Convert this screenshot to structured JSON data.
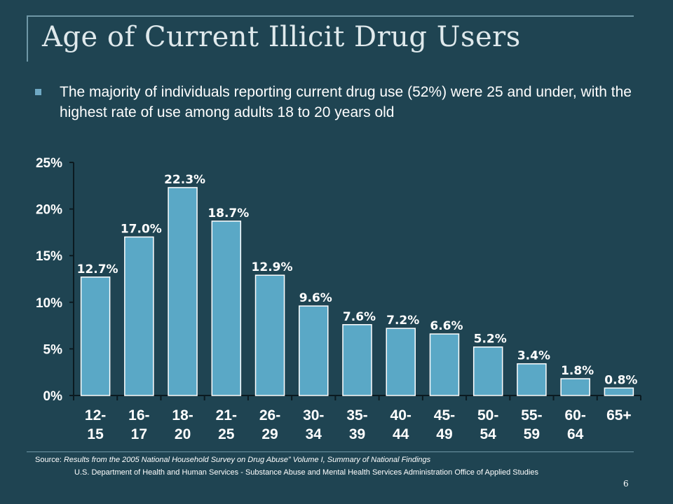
{
  "slide": {
    "title": "Age of Current Illicit Drug Users",
    "bullet": "The majority of individuals reporting current drug use (52%) were 25 and under, with the highest rate of use among adults 18 to 20 years old",
    "source_label": "Source:",
    "source_title": "Results from the 2005 National Household Survey on Drug Abuse” Volume I, Summary of National Findings",
    "source_agency": "U.S. Department of Health and Human Services - Substance Abuse and Mental Health Services Administration Office of Applied Studies",
    "page_number": "6"
  },
  "colors": {
    "background": "#1f4452",
    "bar_fill": "#5aa8c6",
    "bar_stroke": "#ffffff",
    "text": "#ffffff"
  },
  "chart_data": {
    "type": "bar",
    "categories": [
      [
        "12-",
        "15"
      ],
      [
        "16-",
        "17"
      ],
      [
        "18-",
        "20"
      ],
      [
        "21-",
        "25"
      ],
      [
        "26-",
        "29"
      ],
      [
        "30-",
        "34"
      ],
      [
        "35-",
        "39"
      ],
      [
        "40-",
        "44"
      ],
      [
        "45-",
        "49"
      ],
      [
        "50-",
        "54"
      ],
      [
        "55-",
        "59"
      ],
      [
        "60-",
        "64"
      ],
      [
        "65+"
      ]
    ],
    "values": [
      12.7,
      17.0,
      22.3,
      18.7,
      12.9,
      9.6,
      7.6,
      7.2,
      6.6,
      5.2,
      3.4,
      1.8,
      0.8
    ],
    "value_labels": [
      "12.7%",
      "17.0%",
      "22.3%",
      "18.7%",
      "12.9%",
      "9.6%",
      "7.6%",
      "7.2%",
      "6.6%",
      "5.2%",
      "3.4%",
      "1.8%",
      "0.8%"
    ],
    "yticks": [
      0,
      5,
      10,
      15,
      20,
      25
    ],
    "ytick_labels": [
      "0%",
      "5%",
      "10%",
      "15%",
      "20%",
      "25%"
    ],
    "ylim": [
      0,
      25
    ],
    "grid": false,
    "legend": "none",
    "title": "",
    "xlabel": "",
    "ylabel": ""
  }
}
